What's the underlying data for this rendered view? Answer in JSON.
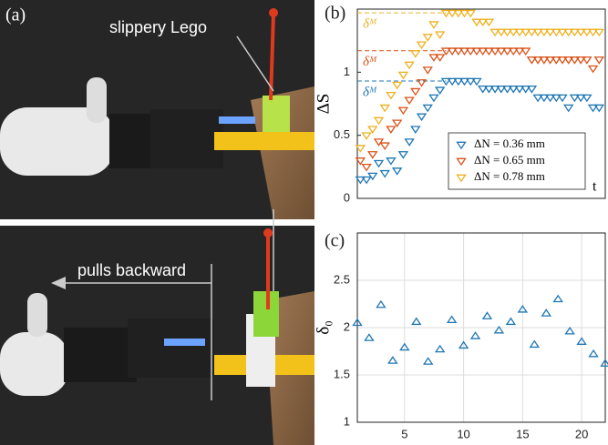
{
  "photo": {
    "panel_label": "(a)",
    "annotations": [
      "slippery Lego",
      "pulls backward"
    ]
  },
  "chart_data": [
    {
      "type": "scatter",
      "panel_label": "(b)",
      "y_label": "ΔS",
      "x_label": "t",
      "marker": "triangle-down",
      "xlim": [
        -0.5,
        40
      ],
      "ylim": [
        0,
        1.5
      ],
      "yticks": [
        0,
        0.5,
        1
      ],
      "grid": false,
      "legend": "lower right",
      "x": [
        0,
        1,
        2,
        3,
        4,
        5,
        6,
        7,
        8,
        9,
        10,
        11,
        12,
        13,
        14,
        15,
        16,
        17,
        18,
        19,
        20,
        21,
        22,
        23,
        24,
        25,
        26,
        27,
        28,
        29,
        30,
        31,
        32,
        33,
        34,
        35,
        36,
        37,
        38,
        39
      ],
      "series": [
        {
          "name": "ΔN = 0.36 mm",
          "color": "#1f77b4",
          "ref": 0.93,
          "ref_label": "δᴹ",
          "values": [
            0.15,
            0.15,
            0.18,
            0.28,
            0.2,
            0.3,
            0.22,
            0.35,
            0.45,
            0.55,
            0.65,
            0.72,
            0.8,
            0.86,
            0.93,
            0.93,
            0.93,
            0.93,
            0.93,
            0.93,
            0.87,
            0.87,
            0.87,
            0.87,
            0.87,
            0.87,
            0.87,
            0.87,
            0.87,
            0.8,
            0.8,
            0.8,
            0.8,
            0.8,
            0.72,
            0.8,
            0.8,
            0.8,
            0.72,
            0.72
          ]
        },
        {
          "name": "ΔN = 0.65 mm",
          "color": "#d95319",
          "ref": 1.17,
          "ref_label": "δᴹ",
          "values": [
            0.3,
            0.25,
            0.35,
            0.45,
            0.42,
            0.55,
            0.6,
            0.7,
            0.78,
            0.85,
            0.92,
            1.02,
            1.12,
            1.12,
            1.17,
            1.17,
            1.17,
            1.17,
            1.17,
            1.17,
            1.17,
            1.17,
            1.17,
            1.17,
            1.17,
            1.17,
            1.17,
            1.17,
            1.1,
            1.1,
            1.1,
            1.1,
            1.1,
            1.1,
            1.1,
            1.1,
            1.1,
            1.1,
            1.03,
            1.1
          ]
        },
        {
          "name": "ΔN = 0.78 mm",
          "color": "#edb120",
          "ref": 1.47,
          "ref_label": "δᴹ",
          "values": [
            0.4,
            0.5,
            0.55,
            0.62,
            0.72,
            0.82,
            0.9,
            0.98,
            1.06,
            1.15,
            1.22,
            1.28,
            1.38,
            1.3,
            1.47,
            1.47,
            1.47,
            1.47,
            1.47,
            1.4,
            1.4,
            1.4,
            1.32,
            1.32,
            1.32,
            1.32,
            1.32,
            1.32,
            1.32,
            1.32,
            1.32,
            1.32,
            1.32,
            1.32,
            1.32,
            1.32,
            1.32,
            1.32,
            1.32,
            1.32
          ]
        }
      ]
    },
    {
      "type": "scatter",
      "panel_label": "(c)",
      "y_label": "δ₀",
      "marker": "triangle-up",
      "xlim": [
        1,
        22
      ],
      "xticks": [
        5,
        10,
        15,
        20
      ],
      "ylim": [
        1,
        3
      ],
      "yticks": [
        1,
        1.5,
        2,
        2.5
      ],
      "grid": true,
      "x": [
        1,
        2,
        3,
        4,
        5,
        6,
        7,
        8,
        9,
        10,
        11,
        12,
        13,
        14,
        15,
        16,
        17,
        18,
        19,
        20,
        21,
        22
      ],
      "series": [
        {
          "color": "#1f77b4",
          "values": [
            2.05,
            1.89,
            2.24,
            1.65,
            1.79,
            2.06,
            1.64,
            1.77,
            2.08,
            1.81,
            1.91,
            2.12,
            1.97,
            2.06,
            2.19,
            1.82,
            2.15,
            2.3,
            1.96,
            1.85,
            1.72,
            1.62
          ]
        }
      ]
    }
  ]
}
